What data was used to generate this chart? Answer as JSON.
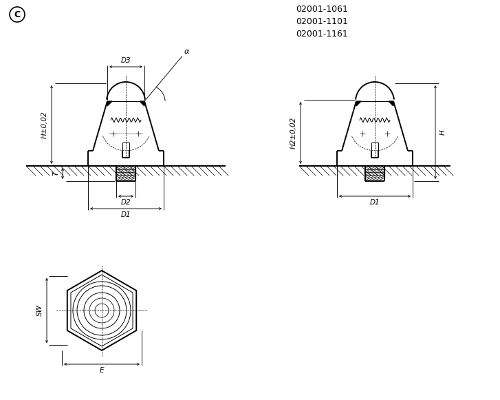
{
  "bg_color": "#ffffff",
  "line_color": "#000000",
  "title_codes": [
    "02001-1061",
    "02001-1101",
    "02001-1161"
  ],
  "circle_label": "C",
  "dim_labels": {
    "D1": "D1",
    "D2": "D2",
    "D3": "D3",
    "H": "H",
    "H_tol": "H±0,02",
    "H2_tol": "H2±0,02",
    "T": "T",
    "SW": "SW",
    "E": "E",
    "alpha": "α"
  },
  "lw_main": 1.4,
  "lw_thin": 0.7,
  "lw_dim": 0.65,
  "lw_hatch": 0.5
}
